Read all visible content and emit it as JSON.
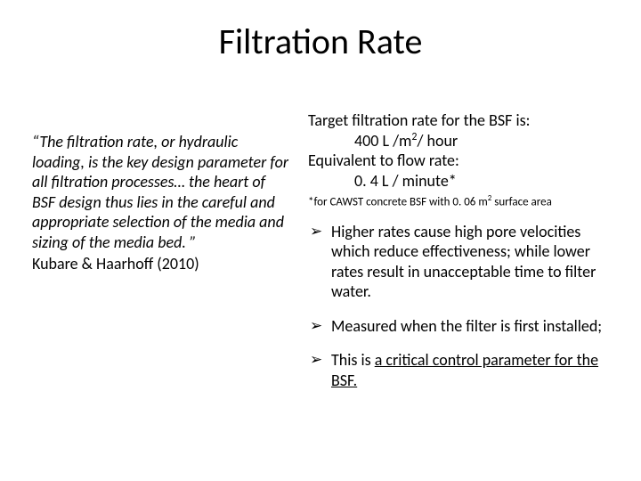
{
  "title": "Filtration Rate",
  "left": {
    "quote": "“The filtration rate, or hydraulic loading, is the key design parameter for all filtration processes… the heart of BSF design thus lies in the careful and appropriate selection of the media and sizing of the media bed. ”",
    "attribution": "Kubare & Haarhoff (2010)"
  },
  "right": {
    "line1": "Target filtration rate for the BSF is:",
    "line2_pre": "400 L /m",
    "line2_sup": "2",
    "line2_post": "/ hour",
    "line3": "Equivalent to flow rate:",
    "line4": "0. 4 L / minute*",
    "footnote_pre": "*for CAWST concrete BSF with 0. 06 m",
    "footnote_sup": "2",
    "footnote_post": " surface area",
    "bullets": {
      "b1": "Higher rates cause high pore velocities which reduce effectiveness; while lower rates result in unacceptable time to filter water.",
      "b2": "Measured when the filter is first installed;",
      "b3_pre": "This is ",
      "b3_underlined": "a critical control parameter for the BSF."
    }
  }
}
